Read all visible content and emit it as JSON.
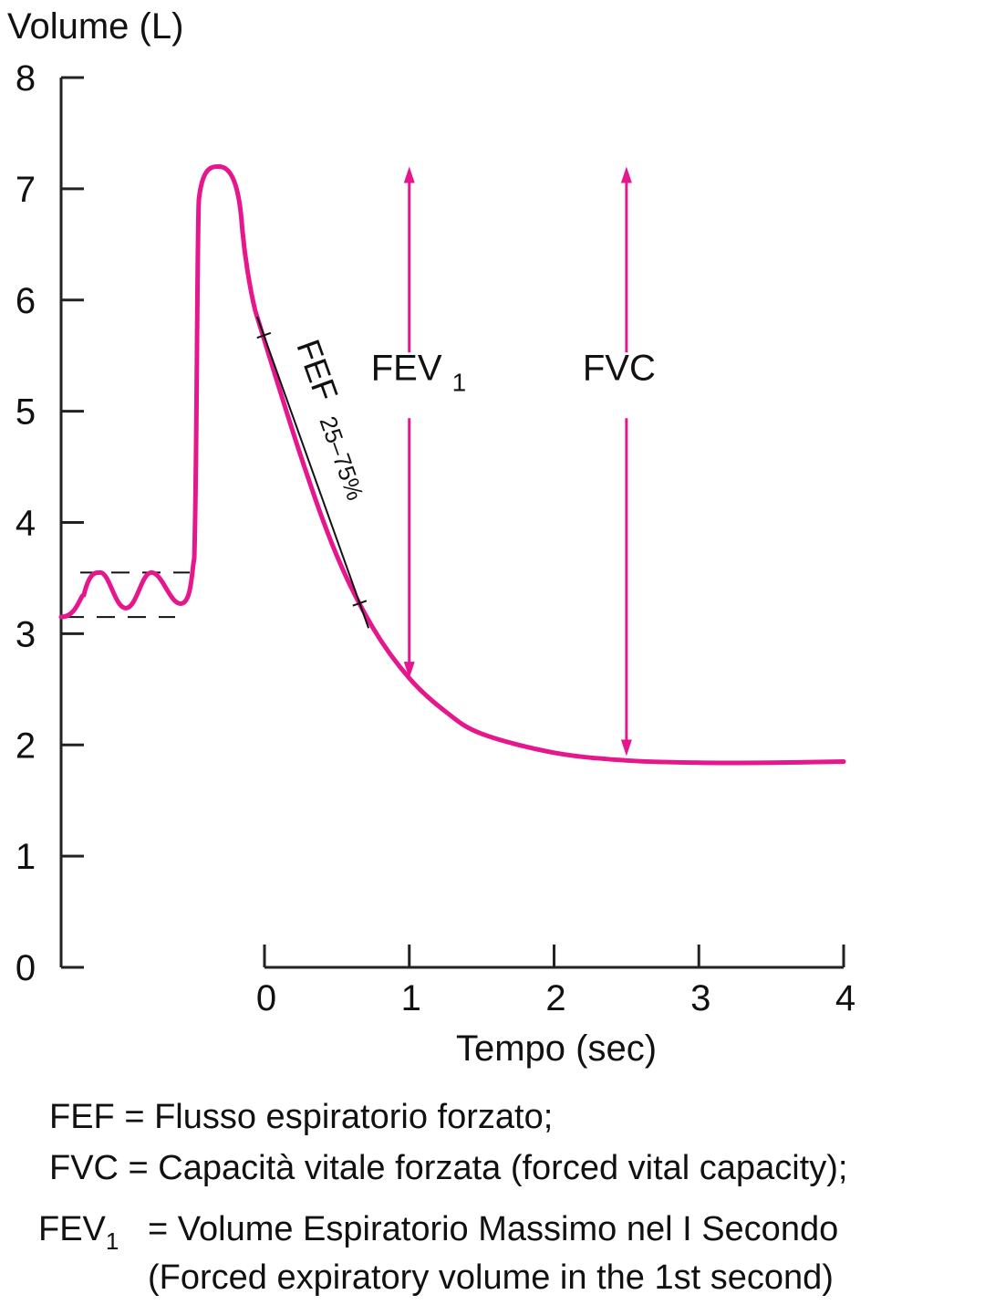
{
  "chart_data": {
    "type": "line",
    "ylabel": "Volume (L)",
    "xlabel": "Tempo (sec)",
    "ylim": [
      0,
      8
    ],
    "xlim": [
      0,
      4
    ],
    "y_ticks": [
      "0",
      "1",
      "2",
      "3",
      "4",
      "5",
      "6",
      "7",
      "8"
    ],
    "x_ticks": [
      "0",
      "1",
      "2",
      "3",
      "4"
    ],
    "colors": {
      "curve": "#e6168c",
      "axis": "#222222"
    },
    "tidal_breathing": {
      "volume_low": 3.15,
      "volume_high": 3.55
    },
    "peak_volume": 7.2,
    "series": [
      {
        "name": "Volume",
        "points": [
          {
            "t": 0.0,
            "v": 5.9
          },
          {
            "t": 0.25,
            "v": 4.6
          },
          {
            "t": 0.5,
            "v": 3.7
          },
          {
            "t": 0.75,
            "v": 3.05
          },
          {
            "t": 1.0,
            "v": 2.6
          },
          {
            "t": 1.25,
            "v": 2.3
          },
          {
            "t": 1.5,
            "v": 2.1
          },
          {
            "t": 2.0,
            "v": 1.93
          },
          {
            "t": 2.5,
            "v": 1.86
          },
          {
            "t": 3.0,
            "v": 1.84
          },
          {
            "t": 3.5,
            "v": 1.84
          },
          {
            "t": 4.0,
            "v": 1.85
          }
        ]
      }
    ],
    "annotations": {
      "fef": {
        "label": "FEF",
        "sub": "25–75%",
        "t_start": 0.0,
        "t_end": 0.7
      },
      "fev1": {
        "label": "FEV",
        "sub": "1",
        "t": 1.0,
        "top": 7.2,
        "bottom": 2.6
      },
      "fvc": {
        "label": "FVC",
        "t": 2.5,
        "top": 7.2,
        "bottom": 1.9
      }
    }
  },
  "legend": {
    "fef": "FEF = Flusso espiratorio forzato;",
    "fvc": "FVC = Capacità vitale forzata (forced vital capacity);",
    "fev1_abbr": "FEV",
    "fev1_sub": "1",
    "fev1_eq": "= Volume Espiratorio Massimo nel I Secondo",
    "fev1_en": "(Forced expiratory volume in the 1st second)"
  }
}
